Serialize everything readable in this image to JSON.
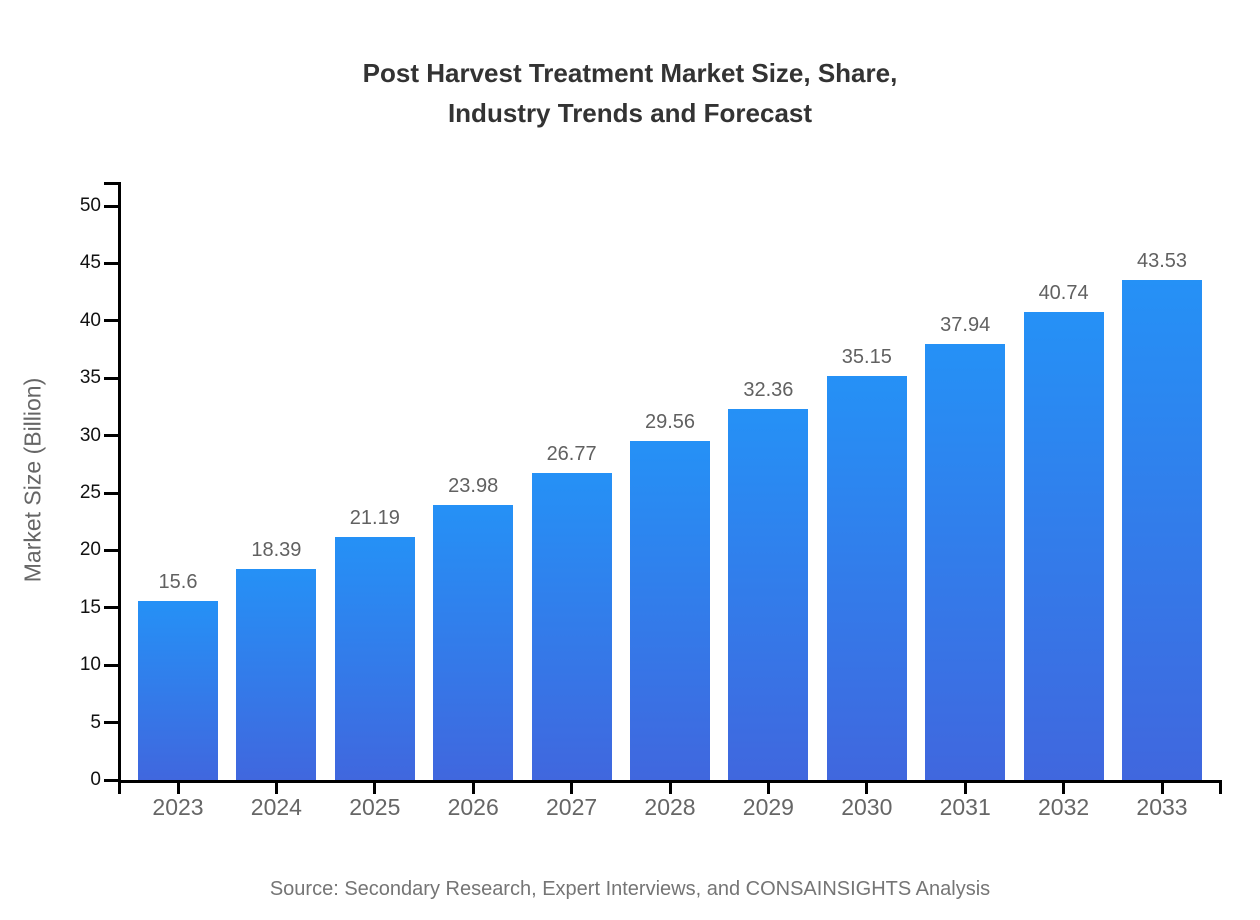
{
  "chart": {
    "title_line1": "Post Harvest Treatment Market Size, Share,",
    "title_line2": "Industry Trends and Forecast",
    "y_axis_title": "Market Size (Billion)",
    "source": "Source: Secondary Research, Expert Interviews, and CONSAINSIGHTS Analysis"
  },
  "chart_data": {
    "type": "bar",
    "title": "Post Harvest Treatment Market Size, Share, Industry Trends and Forecast",
    "xlabel": "",
    "ylabel": "Market Size (Billion)",
    "categories": [
      "2023",
      "2024",
      "2025",
      "2026",
      "2027",
      "2028",
      "2029",
      "2030",
      "2031",
      "2032",
      "2033"
    ],
    "values": [
      15.6,
      18.39,
      21.19,
      23.98,
      26.77,
      29.56,
      32.36,
      35.15,
      37.94,
      40.74,
      43.53
    ],
    "ylim": [
      0,
      52
    ],
    "yticks": [
      0,
      5,
      10,
      15,
      20,
      25,
      30,
      35,
      40,
      45,
      50
    ],
    "grid": false,
    "legend_position": "none",
    "data_labels_shown": true,
    "source_note": "Source: Secondary Research, Expert Interviews, and CONSAINSIGHTS Analysis",
    "colors": {
      "bar_gradient_top": "#2591f6",
      "bar_gradient_bottom": "#4067de",
      "title_text": "#333333",
      "value_label_text": "#616161",
      "y_tick_text": "#111111",
      "x_tick_text": "#666666",
      "y_axis_title_text": "#666666",
      "source_text": "#757575",
      "axis_line": "#000000"
    }
  }
}
